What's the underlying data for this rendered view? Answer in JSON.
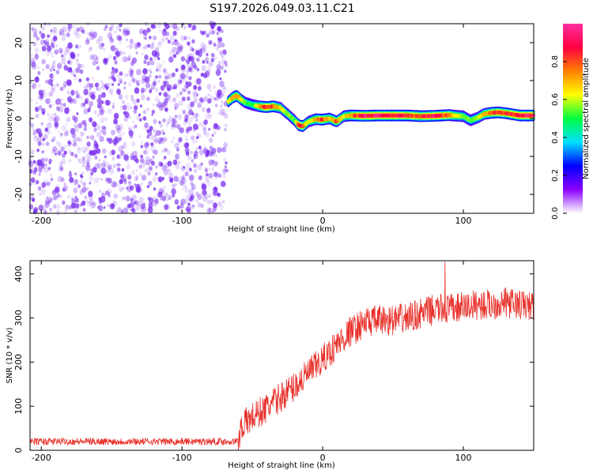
{
  "title": "S197.2026.049.03.11.C21",
  "chart_data": [
    {
      "type": "heatmap",
      "name": "spectrogram",
      "xlabel": "Height of straight line (km)",
      "ylabel": "Frequency (Hz)",
      "xlim": [
        -208,
        150
      ],
      "ylim": [
        -25,
        25
      ],
      "xticks": [
        -200,
        -100,
        0,
        100
      ],
      "yticks": [
        20,
        10,
        0,
        -10,
        -20
      ],
      "noise_region_x": [
        -208,
        -68
      ],
      "noise_color": "#7b2ff0",
      "ridge": {
        "x": [
          -67,
          -64,
          -61,
          -58,
          -55,
          -50,
          -45,
          -40,
          -35,
          -30,
          -25,
          -20,
          -17,
          -14,
          -10,
          -5,
          0,
          5,
          10,
          15,
          20,
          30,
          40,
          50,
          60,
          70,
          80,
          90,
          95,
          100,
          105,
          110,
          115,
          120,
          125,
          130,
          140,
          150
        ],
        "y": [
          4.5,
          5.5,
          6,
          5,
          4.2,
          3.6,
          3.2,
          3.0,
          3.2,
          2.8,
          1.2,
          -0.5,
          -1.8,
          -2,
          -0.8,
          -0.2,
          -0.3,
          0.0,
          -0.8,
          0.6,
          0.8,
          0.7,
          0.8,
          0.8,
          0.8,
          0.6,
          0.7,
          0.9,
          0.7,
          0.6,
          -0.5,
          0.2,
          1.2,
          1.5,
          1.6,
          1.4,
          0.8,
          0.8
        ],
        "amp": [
          0.65,
          0.8,
          0.85,
          0.7,
          0.55,
          0.5,
          0.75,
          0.9,
          0.85,
          0.7,
          0.6,
          0.55,
          0.9,
          0.85,
          0.6,
          0.75,
          0.9,
          0.7,
          0.85,
          0.65,
          0.8,
          0.95,
          0.95,
          0.95,
          0.9,
          0.85,
          0.95,
          0.85,
          0.7,
          0.6,
          0.55,
          0.6,
          0.75,
          0.85,
          0.9,
          0.85,
          0.95,
          0.95
        ]
      }
    },
    {
      "type": "colorbar",
      "name": "colorbar",
      "label": "Normalized spectral amplitude",
      "range": [
        0,
        1
      ],
      "ticks": [
        "0.0",
        "0.2",
        "0.4",
        "0.6",
        "0.8"
      ],
      "tick_values": [
        0,
        0.2,
        0.4,
        0.6,
        0.8
      ],
      "colors": [
        "#ffffff",
        "#8a00ff",
        "#0000ff",
        "#00e0ff",
        "#00ff40",
        "#ffff00",
        "#ff8000",
        "#ff0040",
        "#ff30a0"
      ]
    },
    {
      "type": "line",
      "name": "snr",
      "xlabel": "Height of straight line (km)",
      "ylabel": "SNR (10 * v/v)",
      "xlim": [
        -208,
        150
      ],
      "ylim": [
        0,
        430
      ],
      "xticks": [
        -200,
        -100,
        0,
        100
      ],
      "yticks": [
        0,
        100,
        200,
        300,
        400
      ],
      "color": "#e8302a",
      "trend": {
        "x": [
          -208,
          -60,
          -58,
          -50,
          -40,
          -30,
          -20,
          -10,
          0,
          10,
          20,
          30,
          40,
          50,
          60,
          70,
          80,
          90,
          100,
          110,
          120,
          130,
          140,
          150
        ],
        "y": [
          20,
          20,
          55,
          75,
          95,
          120,
          145,
          175,
          205,
          240,
          270,
          290,
          295,
          295,
          300,
          310,
          320,
          320,
          325,
          330,
          330,
          335,
          330,
          325
        ]
      },
      "noise_amplitude": [
        8,
        35
      ],
      "peak": {
        "x": 87,
        "y": 428
      }
    }
  ]
}
